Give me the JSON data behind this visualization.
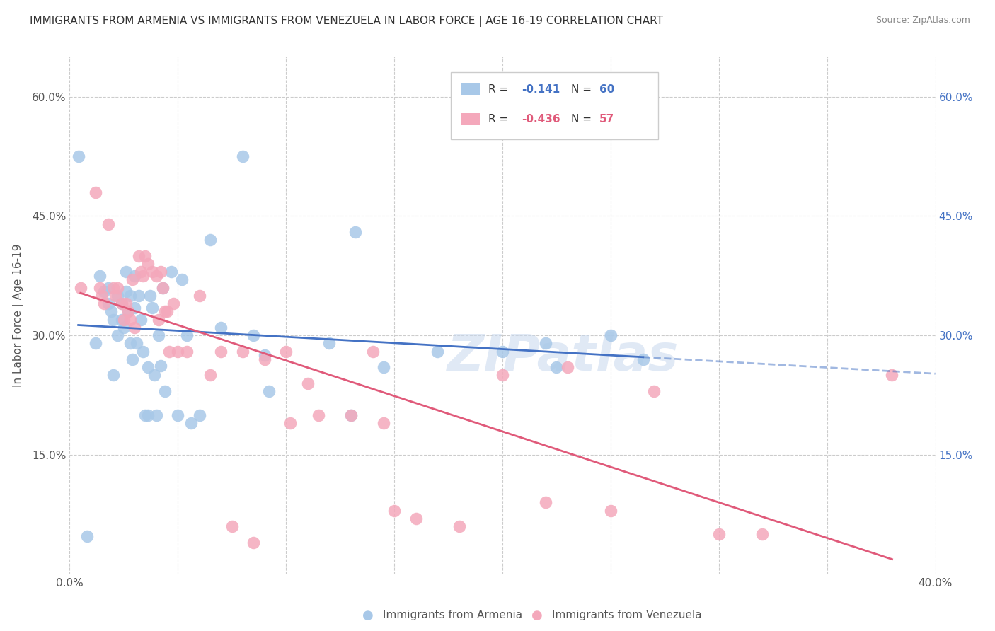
{
  "title": "IMMIGRANTS FROM ARMENIA VS IMMIGRANTS FROM VENEZUELA IN LABOR FORCE | AGE 16-19 CORRELATION CHART",
  "source": "Source: ZipAtlas.com",
  "ylabel": "In Labor Force | Age 16-19",
  "xlim": [
    0.0,
    0.4
  ],
  "ylim": [
    0.0,
    0.65
  ],
  "xticks": [
    0.0,
    0.05,
    0.1,
    0.15,
    0.2,
    0.25,
    0.3,
    0.35,
    0.4
  ],
  "yticks": [
    0.0,
    0.15,
    0.3,
    0.45,
    0.6
  ],
  "xtick_labels": [
    "0.0%",
    "",
    "",
    "",
    "",
    "",
    "",
    "",
    "40.0%"
  ],
  "ytick_labels_left": [
    "",
    "15.0%",
    "30.0%",
    "45.0%",
    "60.0%"
  ],
  "ytick_labels_right": [
    "",
    "15.0%",
    "30.0%",
    "45.0%",
    "60.0%"
  ],
  "armenia_R": -0.141,
  "armenia_N": 60,
  "venezuela_R": -0.436,
  "venezuela_N": 57,
  "armenia_color": "#a8c8e8",
  "venezuela_color": "#f4a8bb",
  "armenia_line_color": "#4472c4",
  "venezuela_line_color": "#e05a7a",
  "watermark": "ZIPatlas",
  "armenia_scatter_x": [
    0.004,
    0.008,
    0.012,
    0.014,
    0.016,
    0.018,
    0.018,
    0.019,
    0.02,
    0.02,
    0.022,
    0.022,
    0.024,
    0.024,
    0.025,
    0.026,
    0.026,
    0.027,
    0.028,
    0.028,
    0.029,
    0.03,
    0.03,
    0.031,
    0.032,
    0.033,
    0.034,
    0.035,
    0.036,
    0.036,
    0.037,
    0.038,
    0.039,
    0.04,
    0.041,
    0.042,
    0.043,
    0.044,
    0.047,
    0.05,
    0.052,
    0.054,
    0.056,
    0.06,
    0.065,
    0.07,
    0.08,
    0.085,
    0.09,
    0.092,
    0.12,
    0.13,
    0.132,
    0.145,
    0.17,
    0.2,
    0.22,
    0.225,
    0.25,
    0.265
  ],
  "armenia_scatter_y": [
    0.525,
    0.048,
    0.29,
    0.375,
    0.355,
    0.36,
    0.34,
    0.33,
    0.32,
    0.25,
    0.35,
    0.3,
    0.34,
    0.32,
    0.31,
    0.38,
    0.355,
    0.33,
    0.29,
    0.35,
    0.27,
    0.375,
    0.335,
    0.29,
    0.35,
    0.32,
    0.28,
    0.2,
    0.2,
    0.26,
    0.35,
    0.335,
    0.25,
    0.2,
    0.3,
    0.262,
    0.36,
    0.23,
    0.38,
    0.2,
    0.37,
    0.3,
    0.19,
    0.2,
    0.42,
    0.31,
    0.525,
    0.3,
    0.275,
    0.23,
    0.29,
    0.2,
    0.43,
    0.26,
    0.28,
    0.28,
    0.29,
    0.26,
    0.3,
    0.27
  ],
  "venezuela_scatter_x": [
    0.005,
    0.012,
    0.014,
    0.015,
    0.016,
    0.018,
    0.02,
    0.021,
    0.022,
    0.024,
    0.025,
    0.026,
    0.027,
    0.028,
    0.029,
    0.03,
    0.032,
    0.033,
    0.034,
    0.035,
    0.036,
    0.038,
    0.04,
    0.041,
    0.042,
    0.043,
    0.044,
    0.045,
    0.046,
    0.048,
    0.05,
    0.054,
    0.06,
    0.065,
    0.07,
    0.075,
    0.08,
    0.085,
    0.09,
    0.1,
    0.102,
    0.11,
    0.115,
    0.13,
    0.14,
    0.145,
    0.15,
    0.16,
    0.18,
    0.2,
    0.22,
    0.23,
    0.25,
    0.27,
    0.3,
    0.32,
    0.38
  ],
  "venezuela_scatter_y": [
    0.36,
    0.48,
    0.36,
    0.35,
    0.34,
    0.44,
    0.36,
    0.35,
    0.36,
    0.34,
    0.32,
    0.34,
    0.33,
    0.32,
    0.37,
    0.31,
    0.4,
    0.38,
    0.375,
    0.4,
    0.39,
    0.38,
    0.375,
    0.32,
    0.38,
    0.36,
    0.33,
    0.33,
    0.28,
    0.34,
    0.28,
    0.28,
    0.35,
    0.25,
    0.28,
    0.06,
    0.28,
    0.04,
    0.27,
    0.28,
    0.19,
    0.24,
    0.2,
    0.2,
    0.28,
    0.19,
    0.08,
    0.07,
    0.06,
    0.25,
    0.09,
    0.26,
    0.08,
    0.23,
    0.05,
    0.05,
    0.25
  ]
}
